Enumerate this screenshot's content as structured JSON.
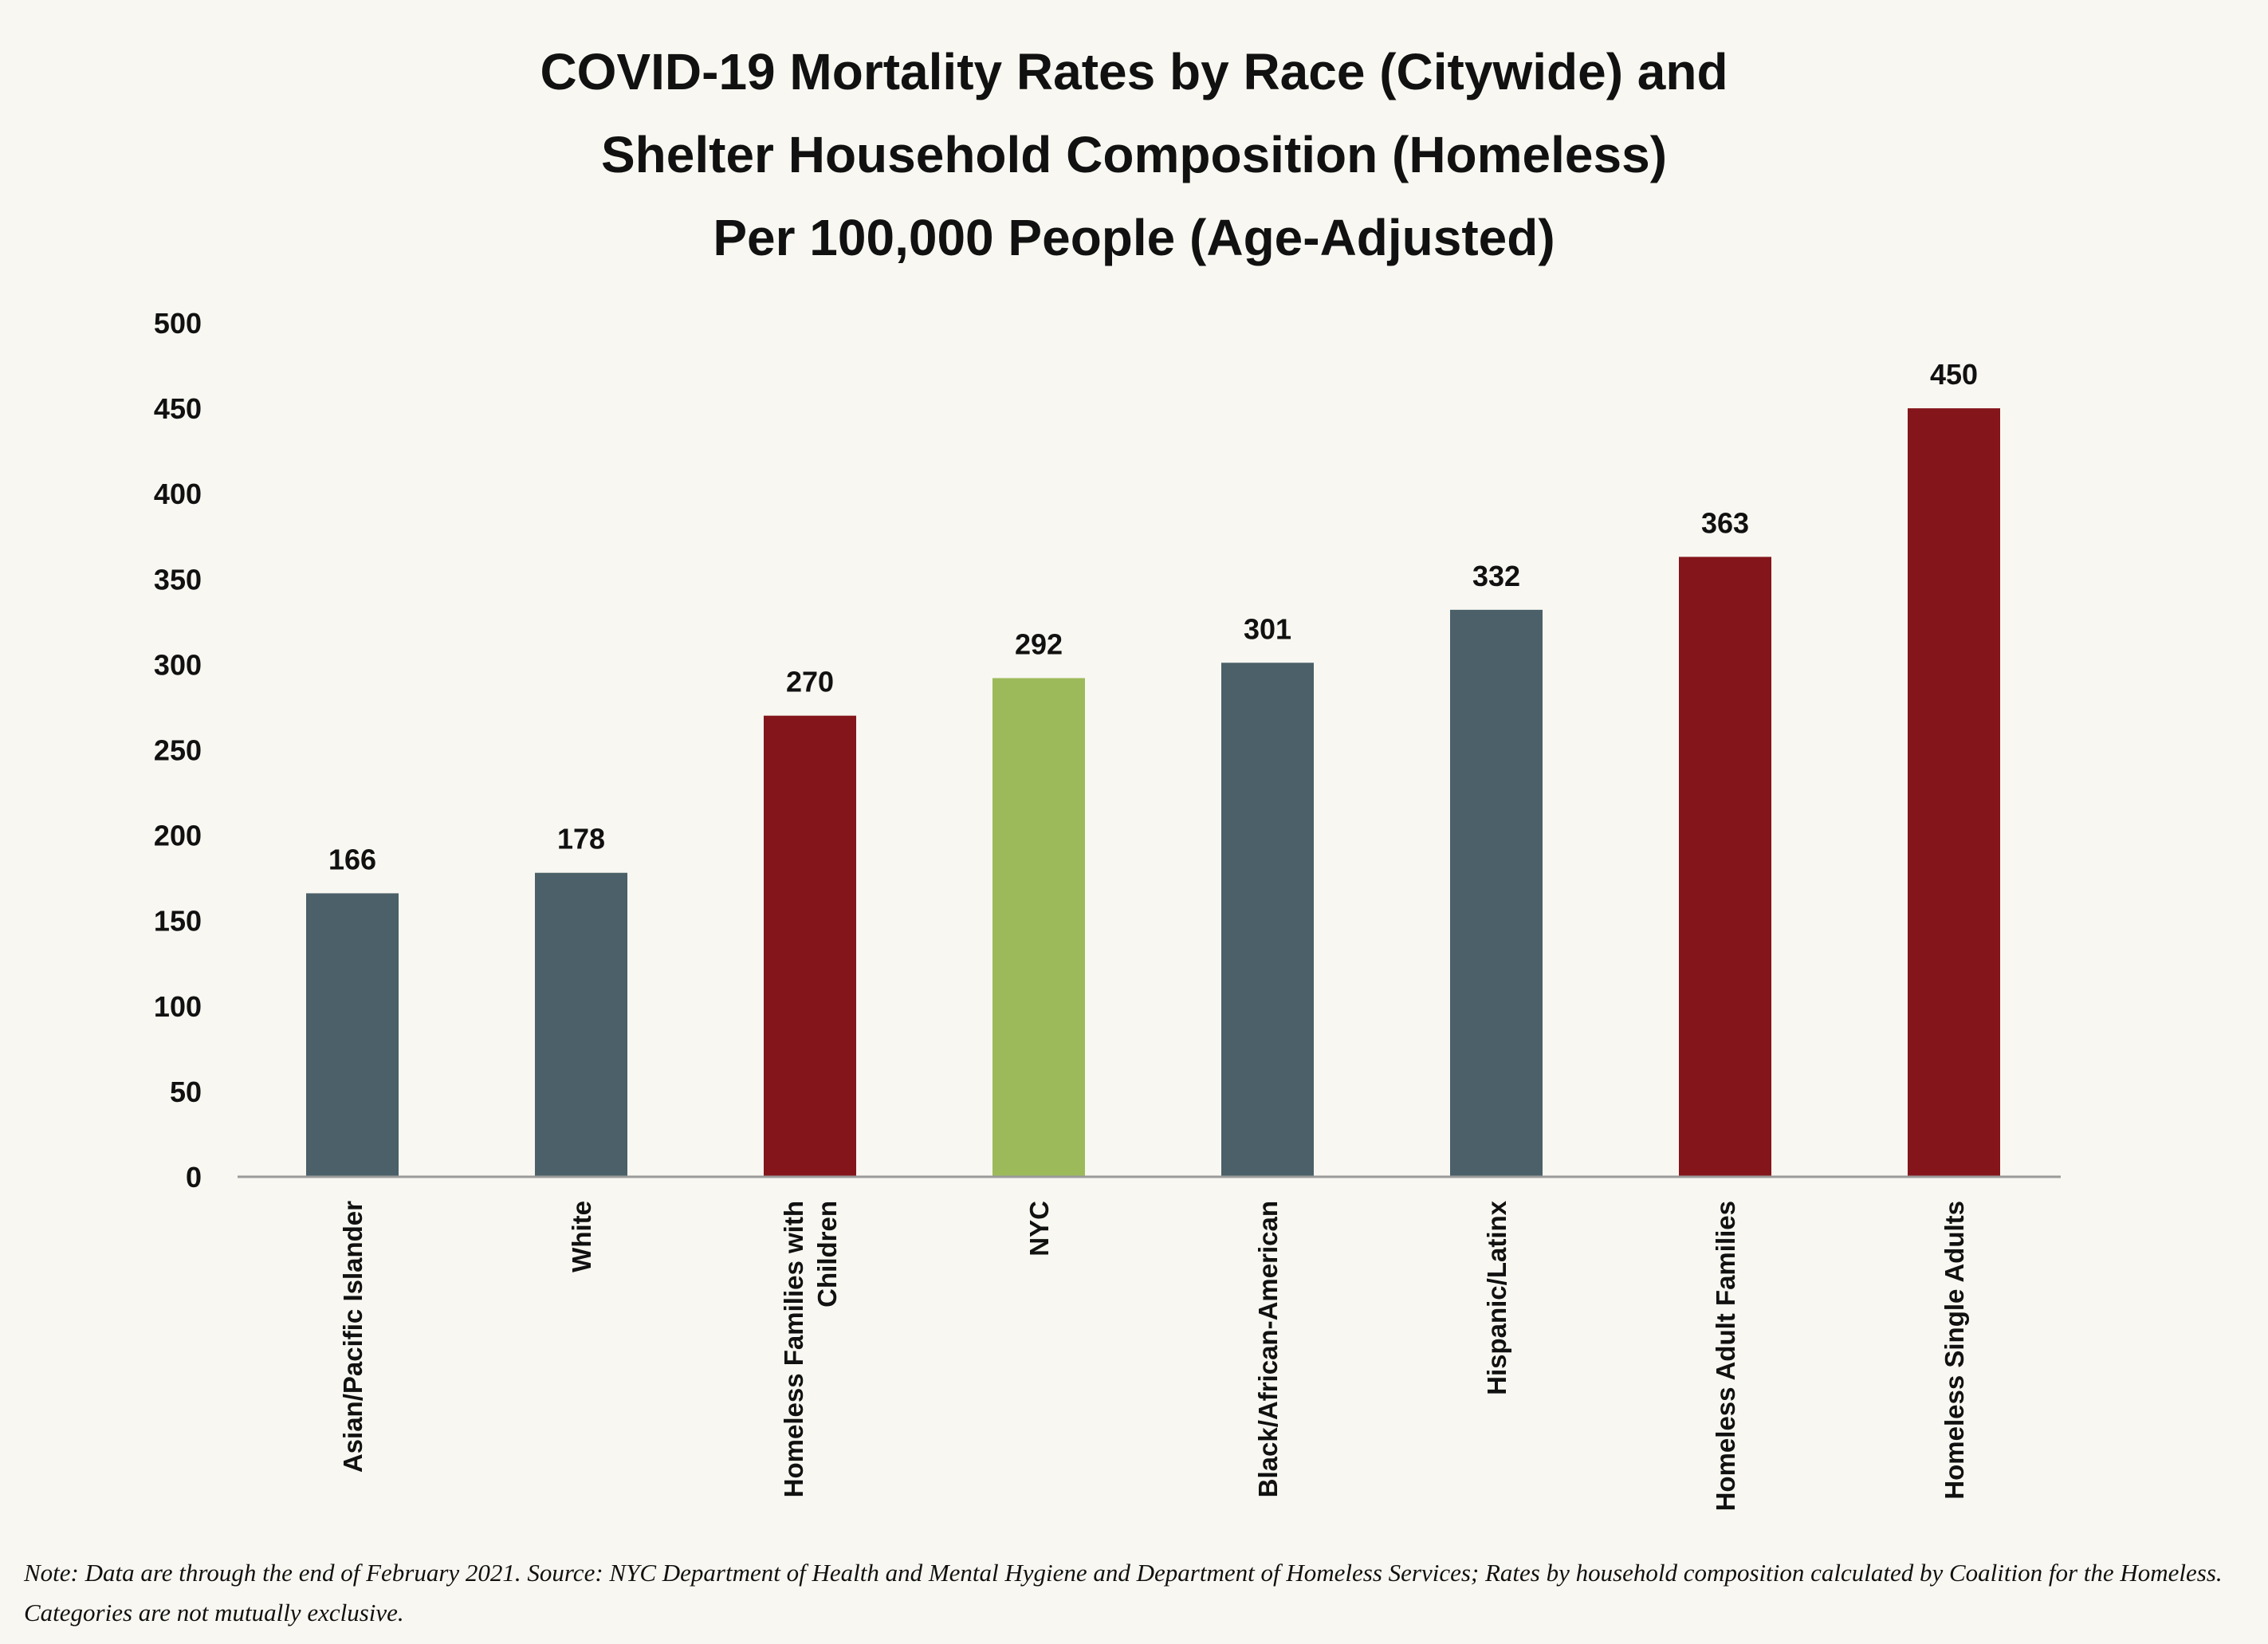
{
  "chart_data": {
    "type": "bar",
    "title": [
      "COVID-19 Mortality Rates by Race (Citywide) and",
      "Shelter Household Composition (Homeless)",
      "Per 100,000 People (Age-Adjusted)"
    ],
    "categories": [
      [
        "Asian/Pacific Islander"
      ],
      [
        "White"
      ],
      [
        "Homeless Families with",
        "Children"
      ],
      [
        "NYC"
      ],
      [
        "Black/African-American"
      ],
      [
        "Hispanic/Latinx"
      ],
      [
        "Homeless Adult Families"
      ],
      [
        "Homeless Single Adults"
      ]
    ],
    "values": [
      166,
      178,
      270,
      292,
      301,
      332,
      363,
      450
    ],
    "data_labels": [
      "166",
      "178",
      "270",
      "292",
      "301",
      "332",
      "363",
      "450"
    ],
    "bar_colors": [
      "#4b6068",
      "#4b6068",
      "#84151b",
      "#9dba5b",
      "#4b6068",
      "#4b6068",
      "#84151b",
      "#84151b"
    ],
    "ylim": [
      0,
      500
    ],
    "yticks": [
      0,
      50,
      100,
      150,
      200,
      250,
      300,
      350,
      400,
      450,
      500
    ],
    "ytick_labels": [
      "0",
      "50",
      "100",
      "150",
      "200",
      "250",
      "300",
      "350",
      "400",
      "450",
      "500"
    ],
    "xlabel": "",
    "ylabel": "",
    "grid": false,
    "legend": "none"
  },
  "note": "Note: Data are through the end of February 2021. Source: NYC Department of Health and Mental Hygiene and Department of Homeless Services; Rates by household composition calculated by Coalition for the Homeless. Categories are not mutually exclusive."
}
